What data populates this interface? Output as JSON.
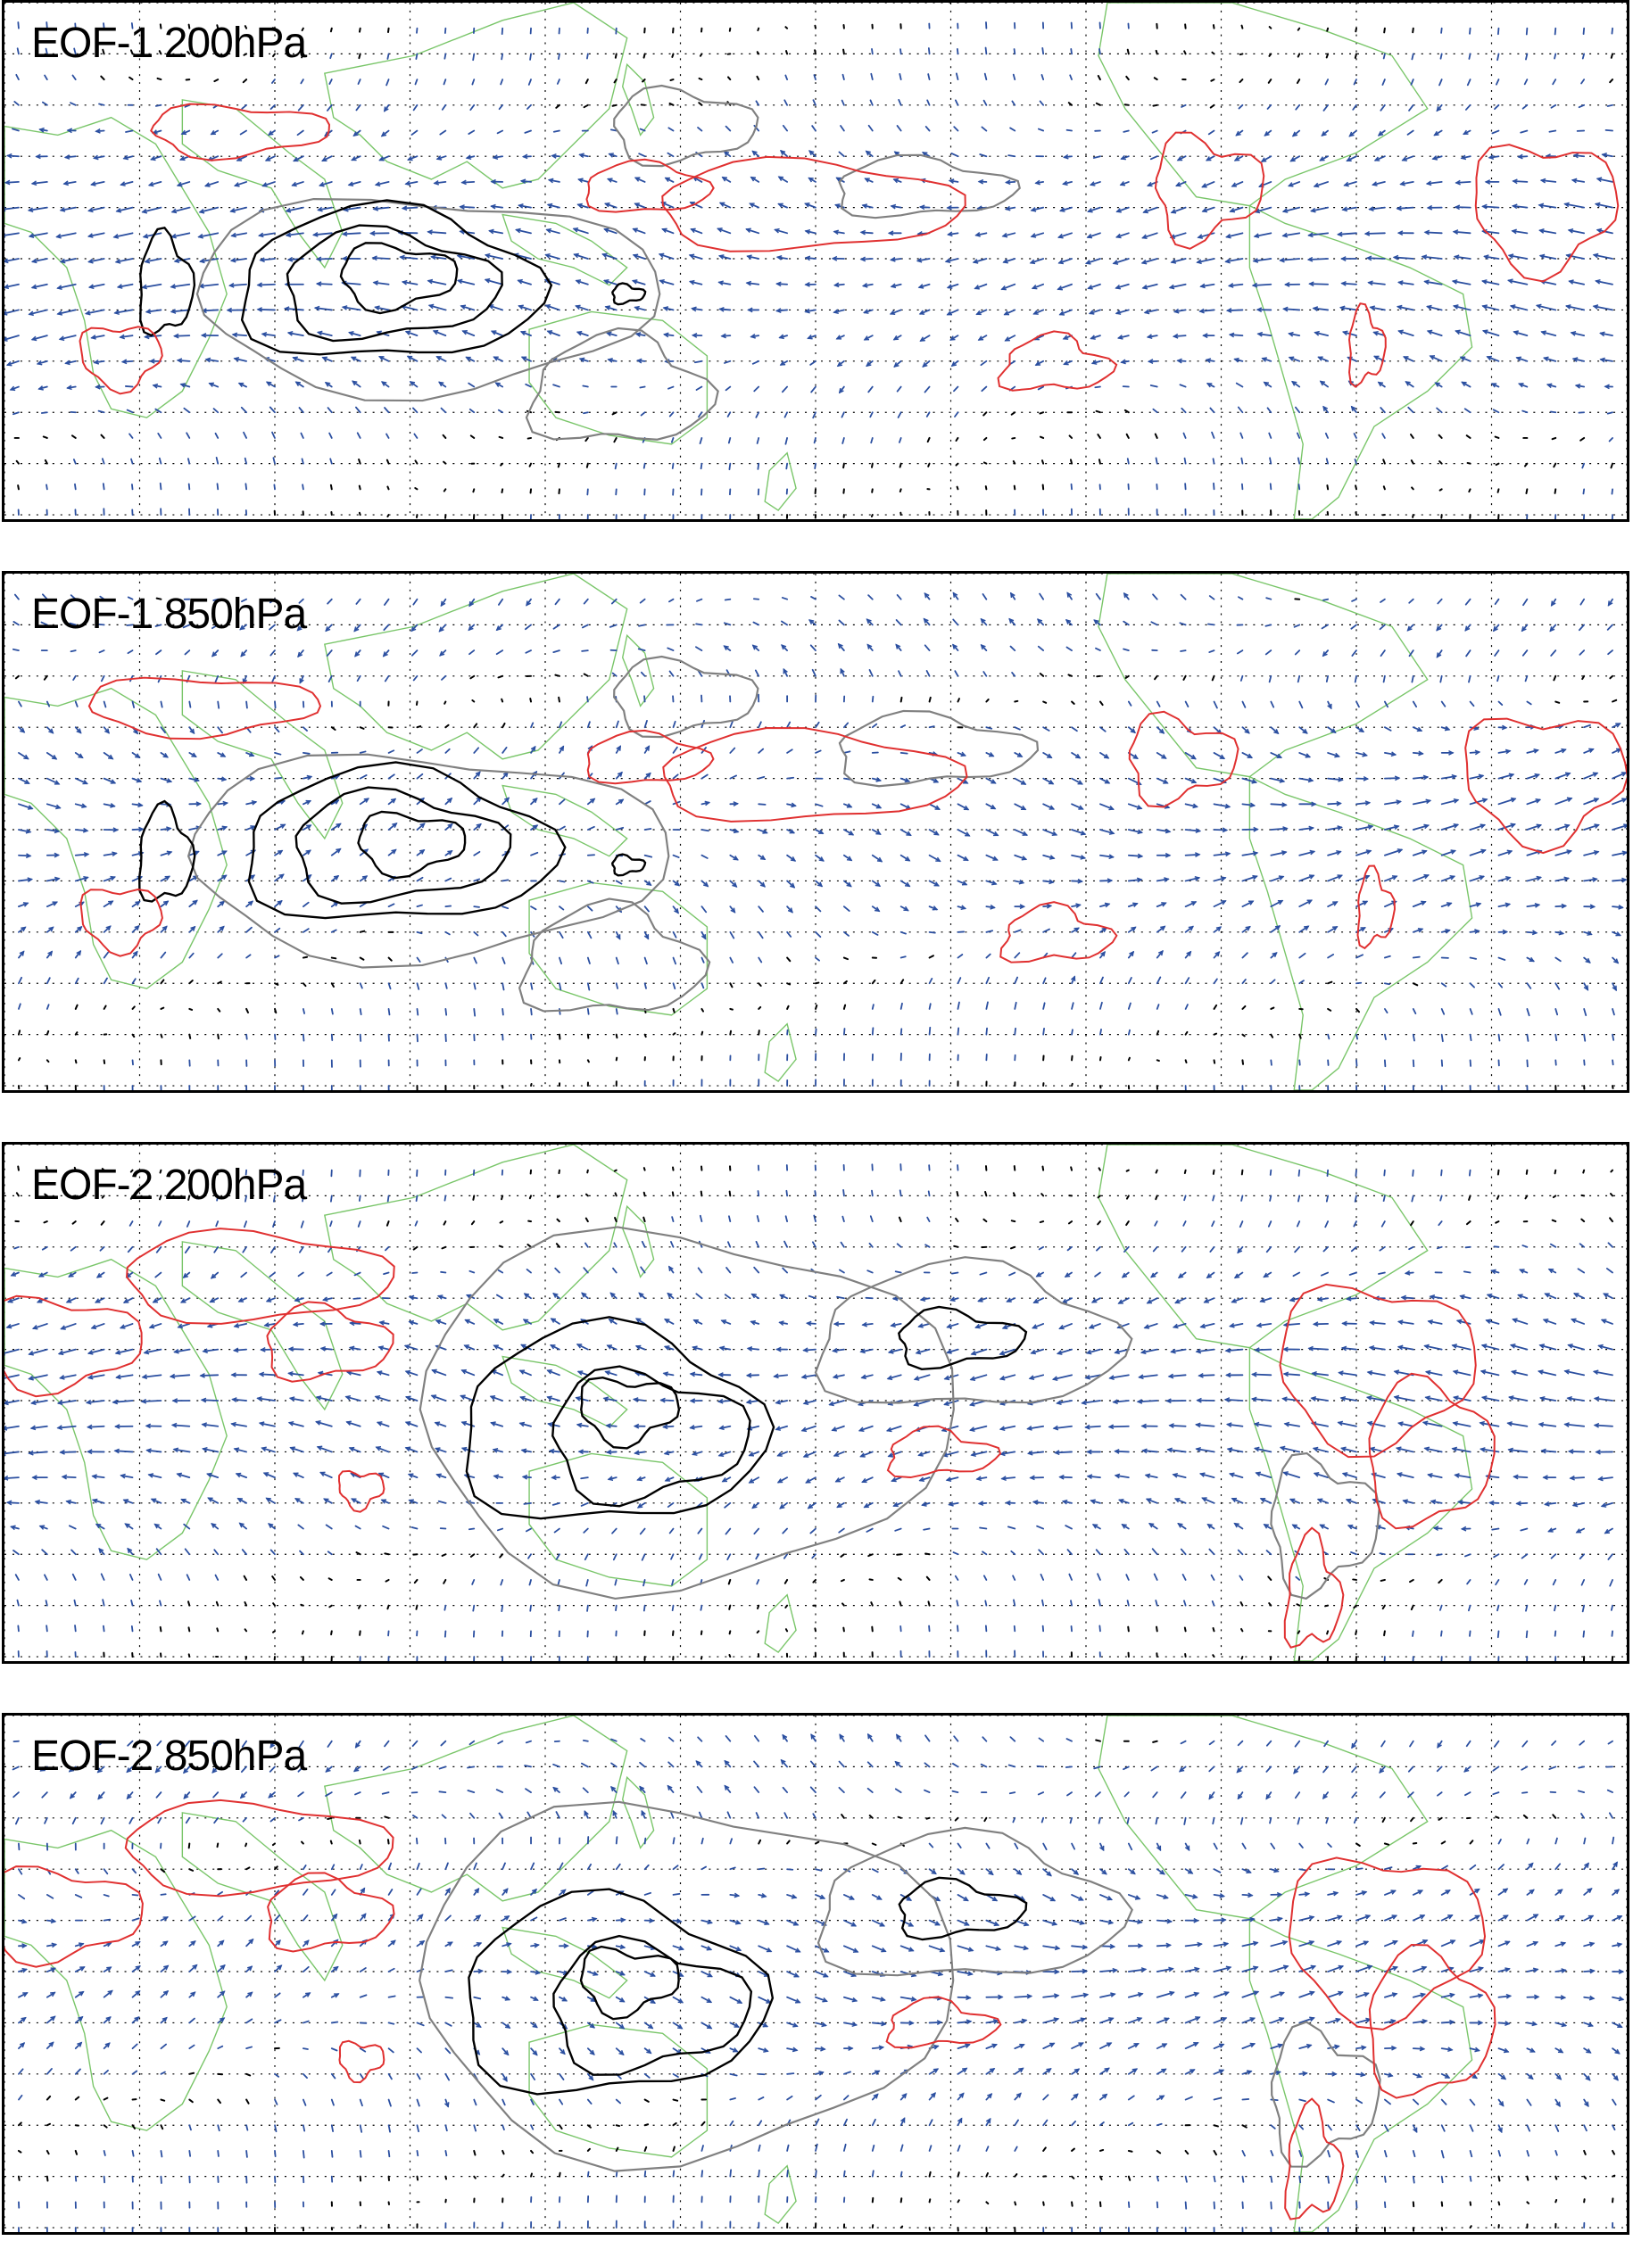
{
  "panels": [
    {
      "id": "eof1-200",
      "title": "EOF-1 200hPa",
      "mode": 1,
      "level": "upper"
    },
    {
      "id": "eof1-850",
      "title": "EOF-1 850hPa",
      "mode": 1,
      "level": "lower"
    },
    {
      "id": "eof2-200",
      "title": "EOF-2 200hPa",
      "mode": 2,
      "level": "upper"
    },
    {
      "id": "eof2-850",
      "title": "EOF-2 850hPa",
      "mode": 2,
      "level": "lower"
    }
  ],
  "colors": {
    "frame": "#000000",
    "coastline": "#7ac66a",
    "wind_vectors": "#2b4fa0",
    "positive_contour": "#e03030",
    "negative_contour_strong": "#000000",
    "negative_contour_weak": "#808080",
    "grid": "#000000"
  },
  "legend": []
}
